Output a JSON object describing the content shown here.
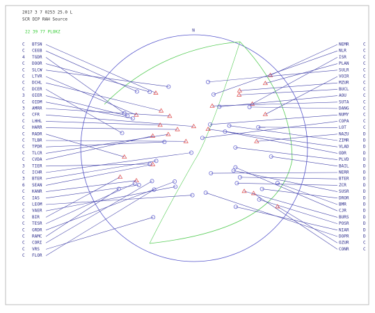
{
  "header": {
    "line1": "2017  3 7 0253 25.0 L",
    "line2": "SCR DIP RAH Source",
    "line3": "22  39  77 PLOKZ"
  },
  "compass": {
    "north": "N"
  },
  "left_stations": [
    {
      "flag": "C",
      "code": "BTSN"
    },
    {
      "flag": "C",
      "code": "CEEB"
    },
    {
      "flag": "4",
      "code": "TGDR"
    },
    {
      "flag": "C",
      "code": "DOOR"
    },
    {
      "flag": "C",
      "code": "SLCW"
    },
    {
      "flag": "C",
      "code": "LTVR"
    },
    {
      "flag": "C",
      "code": "DCHL"
    },
    {
      "flag": "C",
      "code": "DCER"
    },
    {
      "flag": "3",
      "code": "OIER"
    },
    {
      "flag": "C",
      "code": "OIDM"
    },
    {
      "flag": "3",
      "code": "AMRR"
    },
    {
      "flag": "C",
      "code": "CFR"
    },
    {
      "flag": "C",
      "code": "LHHL"
    },
    {
      "flag": "C",
      "code": "HARR"
    },
    {
      "flag": "C",
      "code": "RADR"
    },
    {
      "flag": "C",
      "code": "TLBR"
    },
    {
      "flag": "C",
      "code": "TPDR"
    },
    {
      "flag": "C",
      "code": "TLCR"
    },
    {
      "flag": "C",
      "code": "CVDA"
    },
    {
      "flag": "3",
      "code": "TIER"
    },
    {
      "flag": "C",
      "code": "ICHR"
    },
    {
      "flag": "3",
      "code": "BTER"
    },
    {
      "flag": "6",
      "code": "SEAN"
    },
    {
      "flag": "C",
      "code": "KANR"
    },
    {
      "flag": "C",
      "code": "IAS"
    },
    {
      "flag": "C",
      "code": "LEOM"
    },
    {
      "flag": "C",
      "code": "VAER"
    },
    {
      "flag": "C",
      "code": "BIR"
    },
    {
      "flag": "C",
      "code": "TESR"
    },
    {
      "flag": "C",
      "code": "GRDR"
    },
    {
      "flag": "C",
      "code": "RAMC"
    },
    {
      "flag": "C",
      "code": "CORI"
    },
    {
      "flag": "C",
      "code": "VRS"
    },
    {
      "flag": "C",
      "code": "FLOR"
    }
  ],
  "right_stations": [
    {
      "code": "NEMR",
      "flag": "C"
    },
    {
      "code": "NLR",
      "flag": "C"
    },
    {
      "code": "ISR",
      "flag": "C"
    },
    {
      "code": "PLAN",
      "flag": "C"
    },
    {
      "code": "SULR",
      "flag": "C"
    },
    {
      "code": "VOIR",
      "flag": "C"
    },
    {
      "code": "MZUR",
      "flag": "C"
    },
    {
      "code": "BUCL",
      "flag": "C"
    },
    {
      "code": "AOU",
      "flag": "C"
    },
    {
      "code": "SUTA",
      "flag": "C"
    },
    {
      "code": "DANG",
      "flag": "C"
    },
    {
      "code": "NUMY",
      "flag": "C"
    },
    {
      "code": "COPA",
      "flag": "C"
    },
    {
      "code": "LOT",
      "flag": "C"
    },
    {
      "code": "NAZU",
      "flag": "D"
    },
    {
      "code": "ZIMR",
      "flag": "D"
    },
    {
      "code": "VLAD",
      "flag": "D"
    },
    {
      "code": "ODR",
      "flag": "D"
    },
    {
      "code": "PLVD",
      "flag": "D"
    },
    {
      "code": "BAIL",
      "flag": "D"
    },
    {
      "code": "NERR",
      "flag": "D"
    },
    {
      "code": "BTER",
      "flag": "D"
    },
    {
      "code": "ZCR",
      "flag": "D"
    },
    {
      "code": "SUSR",
      "flag": "D"
    },
    {
      "code": "DROR",
      "flag": "D"
    },
    {
      "code": "BMR",
      "flag": "D"
    },
    {
      "code": "CJR",
      "flag": "D"
    },
    {
      "code": "BURS",
      "flag": "D"
    },
    {
      "code": "POSR",
      "flag": "D"
    },
    {
      "code": "NIAR",
      "flag": "D"
    },
    {
      "code": "DOPR",
      "flag": "D"
    },
    {
      "code": "OZUR",
      "flag": "C"
    },
    {
      "code": "CONR",
      "flag": "C"
    }
  ]
}
